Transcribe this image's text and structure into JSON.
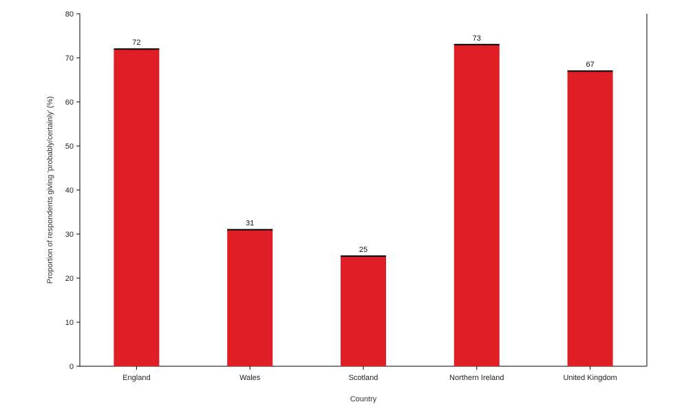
{
  "chart_data": {
    "type": "bar",
    "title": "",
    "xlabel": "Country",
    "ylabel": "Proportion of respondents giving ‘probably/certainly’ (%)",
    "categories": [
      "England",
      "Wales",
      "Scotland",
      "Northern Ireland",
      "United Kingdom"
    ],
    "values": [
      72,
      31,
      25,
      73,
      67
    ],
    "data_labels": [
      "72",
      "31",
      "25",
      "73",
      "67"
    ],
    "yticks": [
      0,
      10,
      20,
      30,
      40,
      50,
      60,
      70,
      80
    ],
    "ytick_labels": [
      "0",
      "10",
      "20",
      "30",
      "40",
      "50",
      "60",
      "70",
      "80"
    ],
    "ylim": [
      0,
      80
    ],
    "grid": false,
    "legend": "none",
    "bar_color": "#e01e25",
    "bar_top_color": "#000000"
  }
}
